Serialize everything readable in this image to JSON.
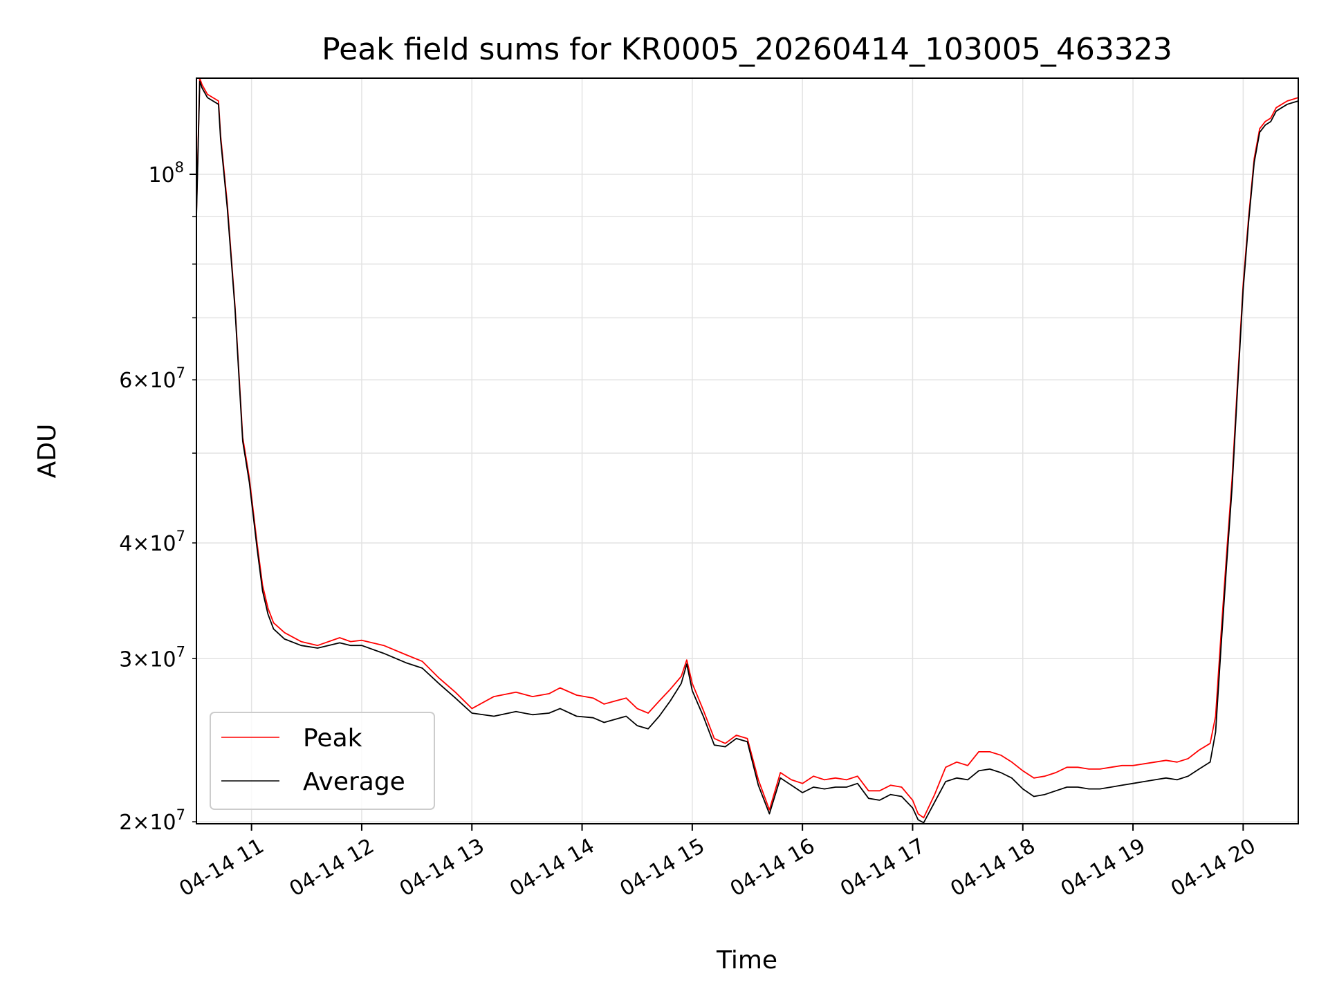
{
  "chart_data": {
    "type": "line",
    "title": "Peak field sums for KR0005_20260414_103005_463323",
    "xlabel": "Time",
    "ylabel": "ADU",
    "x_unit": "hour of 2026-04-14",
    "xlim": [
      10.5,
      20.5
    ],
    "ylim": [
      19900000,
      127000000
    ],
    "yscale": "log",
    "grid": true,
    "legend_position": "lower-left",
    "x_ticks": [
      {
        "value": 11,
        "label": "04-14 11"
      },
      {
        "value": 12,
        "label": "04-14 12"
      },
      {
        "value": 13,
        "label": "04-14 13"
      },
      {
        "value": 14,
        "label": "04-14 14"
      },
      {
        "value": 15,
        "label": "04-14 15"
      },
      {
        "value": 16,
        "label": "04-14 16"
      },
      {
        "value": 17,
        "label": "04-14 17"
      },
      {
        "value": 18,
        "label": "04-14 18"
      },
      {
        "value": 19,
        "label": "04-14 19"
      },
      {
        "value": 20,
        "label": "04-14 20"
      }
    ],
    "y_major_ticks": [
      {
        "value": 100000000,
        "base": "10",
        "exp": "8"
      }
    ],
    "y_minor_ticks": [
      {
        "value": 20000000,
        "mant": "2",
        "base": "10",
        "exp": "7"
      },
      {
        "value": 30000000,
        "mant": "3",
        "base": "10",
        "exp": "7"
      },
      {
        "value": 40000000,
        "mant": "4",
        "base": "10",
        "exp": "7"
      },
      {
        "value": 60000000,
        "mant": "6",
        "base": "10",
        "exp": "7"
      }
    ],
    "y_unlabeled_minor": [
      50000000,
      70000000,
      80000000,
      90000000
    ],
    "series": [
      {
        "name": "Peak",
        "color": "#ff0000",
        "x": [
          10.5,
          10.53,
          10.55,
          10.6,
          10.7,
          10.72,
          10.78,
          10.85,
          10.92,
          10.98,
          11.05,
          11.1,
          11.15,
          11.2,
          11.3,
          11.45,
          11.6,
          11.8,
          11.9,
          12.0,
          12.2,
          12.4,
          12.55,
          12.7,
          12.85,
          13.0,
          13.2,
          13.4,
          13.55,
          13.7,
          13.8,
          13.95,
          14.1,
          14.2,
          14.3,
          14.4,
          14.5,
          14.6,
          14.7,
          14.8,
          14.9,
          14.95,
          15.0,
          15.1,
          15.2,
          15.3,
          15.4,
          15.5,
          15.6,
          15.7,
          15.8,
          15.9,
          16.0,
          16.1,
          16.2,
          16.3,
          16.4,
          16.5,
          16.6,
          16.7,
          16.8,
          16.9,
          17.0,
          17.05,
          17.1,
          17.2,
          17.3,
          17.4,
          17.5,
          17.6,
          17.7,
          17.8,
          17.9,
          18.0,
          18.1,
          18.2,
          18.3,
          18.4,
          18.5,
          18.6,
          18.7,
          18.8,
          18.9,
          19.0,
          19.1,
          19.2,
          19.3,
          19.4,
          19.5,
          19.6,
          19.7,
          19.75,
          19.8,
          19.85,
          19.9,
          19.95,
          20.0,
          20.05,
          20.1,
          20.15,
          20.2,
          20.25,
          20.3,
          20.35,
          20.4,
          20.45,
          20.5
        ],
        "values": [
          91000000,
          127000000,
          125000000,
          122000000,
          120000000,
          110000000,
          93000000,
          72000000,
          52000000,
          47000000,
          40000000,
          36000000,
          34000000,
          32800000,
          32000000,
          31300000,
          31000000,
          31600000,
          31300000,
          31400000,
          31000000,
          30300000,
          29800000,
          28600000,
          27600000,
          26500000,
          27300000,
          27600000,
          27300000,
          27500000,
          27900000,
          27400000,
          27200000,
          26800000,
          27000000,
          27200000,
          26500000,
          26200000,
          27000000,
          27800000,
          28700000,
          29900000,
          28200000,
          26400000,
          24600000,
          24300000,
          24800000,
          24600000,
          22200000,
          20600000,
          22600000,
          22200000,
          22000000,
          22400000,
          22200000,
          22300000,
          22200000,
          22400000,
          21600000,
          21600000,
          21900000,
          21800000,
          21100000,
          20400000,
          20200000,
          21400000,
          22900000,
          23200000,
          23000000,
          23800000,
          23800000,
          23600000,
          23200000,
          22700000,
          22300000,
          22400000,
          22600000,
          22900000,
          22900000,
          22800000,
          22800000,
          22900000,
          23000000,
          23000000,
          23100000,
          23200000,
          23300000,
          23200000,
          23400000,
          23900000,
          24300000,
          26000000,
          32000000,
          39000000,
          47000000,
          60000000,
          76000000,
          90000000,
          104000000,
          112000000,
          114000000,
          115000000,
          118000000,
          119000000,
          120000000,
          120500000,
          121000000
        ]
      },
      {
        "name": "Average",
        "color": "#000000",
        "x": [
          10.5,
          10.53,
          10.55,
          10.6,
          10.7,
          10.72,
          10.78,
          10.85,
          10.92,
          10.98,
          11.05,
          11.1,
          11.15,
          11.2,
          11.3,
          11.45,
          11.6,
          11.8,
          11.9,
          12.0,
          12.2,
          12.4,
          12.55,
          12.7,
          12.85,
          13.0,
          13.2,
          13.4,
          13.55,
          13.7,
          13.8,
          13.95,
          14.1,
          14.2,
          14.3,
          14.4,
          14.5,
          14.6,
          14.7,
          14.8,
          14.9,
          14.95,
          15.0,
          15.1,
          15.2,
          15.3,
          15.4,
          15.5,
          15.6,
          15.7,
          15.8,
          15.9,
          16.0,
          16.1,
          16.2,
          16.3,
          16.4,
          16.5,
          16.6,
          16.7,
          16.8,
          16.9,
          17.0,
          17.05,
          17.1,
          17.2,
          17.3,
          17.4,
          17.5,
          17.6,
          17.7,
          17.8,
          17.9,
          18.0,
          18.1,
          18.2,
          18.3,
          18.4,
          18.5,
          18.6,
          18.7,
          18.8,
          18.9,
          19.0,
          19.1,
          19.2,
          19.3,
          19.4,
          19.5,
          19.6,
          19.7,
          19.75,
          19.8,
          19.85,
          19.9,
          19.95,
          20.0,
          20.05,
          20.1,
          20.15,
          20.2,
          20.25,
          20.3,
          20.35,
          20.4,
          20.45,
          20.5
        ],
        "values": [
          90000000,
          126000000,
          124000000,
          121000000,
          119000000,
          109000000,
          92000000,
          71500000,
          51500000,
          46500000,
          39500000,
          35500000,
          33500000,
          32300000,
          31500000,
          31000000,
          30800000,
          31200000,
          31000000,
          31000000,
          30400000,
          29700000,
          29300000,
          28200000,
          27200000,
          26200000,
          26000000,
          26300000,
          26100000,
          26200000,
          26500000,
          26000000,
          25900000,
          25600000,
          25800000,
          26000000,
          25400000,
          25200000,
          26000000,
          27000000,
          28200000,
          29600000,
          27700000,
          26000000,
          24200000,
          24100000,
          24600000,
          24400000,
          21900000,
          20400000,
          22300000,
          21900000,
          21500000,
          21800000,
          21700000,
          21800000,
          21800000,
          22000000,
          21200000,
          21100000,
          21400000,
          21300000,
          20700000,
          20100000,
          19950000,
          21000000,
          22100000,
          22300000,
          22200000,
          22700000,
          22800000,
          22600000,
          22300000,
          21700000,
          21300000,
          21400000,
          21600000,
          21800000,
          21800000,
          21700000,
          21700000,
          21800000,
          21900000,
          22000000,
          22100000,
          22200000,
          22300000,
          22200000,
          22400000,
          22800000,
          23200000,
          25000000,
          31000000,
          38000000,
          46000000,
          59000000,
          75000000,
          89000000,
          103000000,
          111000000,
          113000000,
          114000000,
          117000000,
          118000000,
          119000000,
          119500000,
          120000000
        ]
      }
    ]
  }
}
